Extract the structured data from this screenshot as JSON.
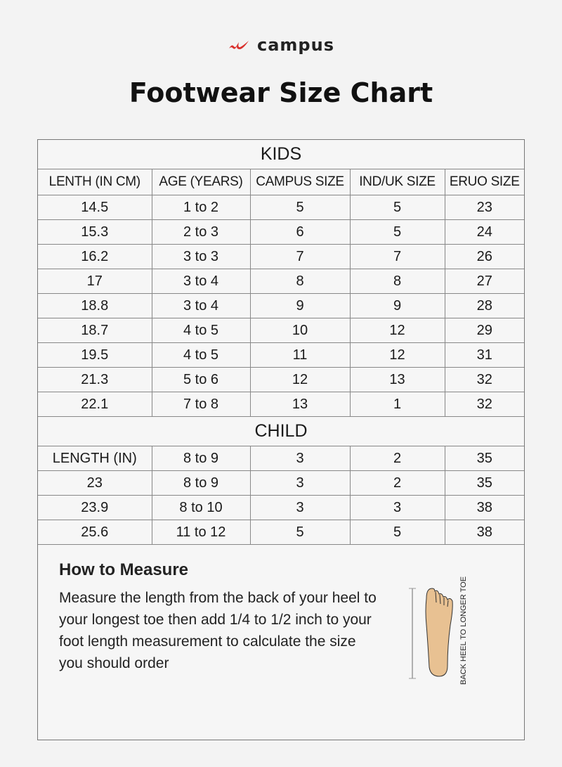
{
  "brand": {
    "name": "campus",
    "accent": "#d9302c"
  },
  "title": "Footwear Size Chart",
  "kids": {
    "heading": "KIDS",
    "columns": [
      "LENTH (IN CM)",
      "AGE (YEARS)",
      "CAMPUS SIZE",
      "IND/UK SIZE",
      "ERUO SIZE"
    ],
    "rows": [
      [
        "14.5",
        "1 to 2",
        "5",
        "5",
        "23"
      ],
      [
        "15.3",
        "2 to 3",
        "6",
        "5",
        "24"
      ],
      [
        "16.2",
        "3 to 3",
        "7",
        "7",
        "26"
      ],
      [
        "17",
        "3 to 4",
        "8",
        "8",
        "27"
      ],
      [
        "18.8",
        "3 to 4",
        "9",
        "9",
        "28"
      ],
      [
        "18.7",
        "4 to 5",
        "10",
        "12",
        "29"
      ],
      [
        "19.5",
        "4 to 5",
        "11",
        "12",
        "31"
      ],
      [
        "21.3",
        "5 to 6",
        "12",
        "13",
        "32"
      ],
      [
        "22.1",
        "7 to 8",
        "13",
        "1",
        "32"
      ]
    ]
  },
  "child": {
    "heading": "CHILD",
    "rows": [
      [
        "LENGTH (IN)",
        "8 to 9",
        "3",
        "2",
        "35"
      ],
      [
        "23",
        "8 to 9",
        "3",
        "2",
        "35"
      ],
      [
        "23.9",
        "8 to 10",
        "3",
        "3",
        "38"
      ],
      [
        "25.6",
        "11 to 12",
        "5",
        "5",
        "38"
      ]
    ]
  },
  "measure": {
    "heading": "How to Measure",
    "text": "Measure the length from the back of your heel to your longest toe then add 1/4 to 1/2 inch to your foot length measurement to calculate the size you should order",
    "diagram_label": "BACK HEEL TO LONGER TOE",
    "foot_color": "#e8c192"
  }
}
